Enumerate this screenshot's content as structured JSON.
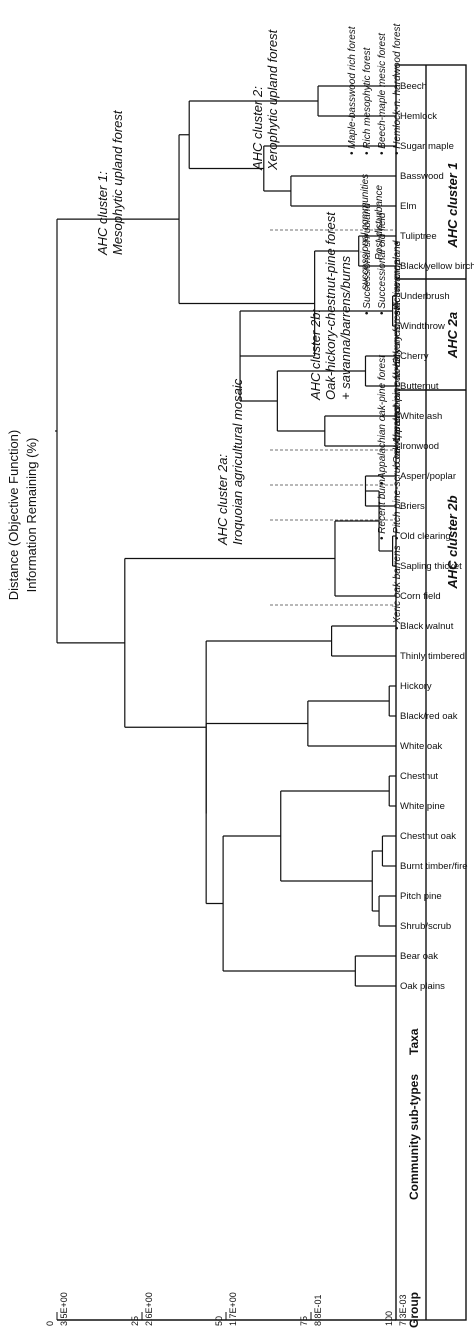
{
  "axes": {
    "distance_label": "Distance (Objective Function)",
    "info_label": "Information Remaining (%)",
    "distance_ticks": [
      "7.3E-03",
      "8.8E-01",
      "1.7E+00",
      "2.6E+00",
      "3.5E+00"
    ],
    "info_ticks": [
      "100",
      "75",
      "50",
      "25",
      "0"
    ]
  },
  "headers": {
    "group": "Group",
    "community": "Community sub-types",
    "taxa": "Taxa"
  },
  "groups": [
    {
      "name": "AHC cluster 1",
      "subtypes": [
        "Hemlock-n. hardwood forest",
        "Beech-maple mesic forest",
        "Rich mesophytic forest",
        "Maple-basswood rich forest"
      ],
      "subtypes_b": [
        "Post-disturbance",
        "successional communities"
      ],
      "taxa": [
        "Beech",
        "Hemlock",
        "Sugar maple",
        "Basswood",
        "Elm",
        "Tuliptree",
        "Black/yellow birch",
        "Underbrush",
        "Windthrow",
        "Cherry",
        "Butternut",
        "White ash",
        "Ironwood"
      ]
    },
    {
      "name": "AHC 2a",
      "subtypes": [
        "Active cropland",
        "Successional old field",
        "Successional shrubland"
      ],
      "taxa": [
        "Aspen/poplar",
        "Briers",
        "Old clearing",
        "Sapling thicket",
        "Corn field"
      ]
    },
    {
      "name": "AHC cluster 2b",
      "subtypes": [
        "Dry-mesic oak savanna",
        "Appalachian oak-hickory forest",
        "Oak-chestnut-pine forest",
        "Appalachian oak-pine forest",
        "Pitch pine-scrub oak barrens",
        "Recent burn",
        "Xeric oak barrens"
      ],
      "taxa": [
        "Black walnut",
        "Thinly timbered",
        "Hickory",
        "Black/red oak",
        "White oak",
        "Chestnut",
        "White pine",
        "Chestnut oak",
        "Burnt timber/fire",
        "Pitch pine",
        "Shrub/scrub",
        "Bear oak",
        "Oak plains"
      ]
    }
  ],
  "cluster_labels": {
    "c1_title": "AHC cluster 1:",
    "c1_sub": "Mesophytic upland forest",
    "c2_title": "AHC cluster 2:",
    "c2_sub": "Xerophytic upland forest",
    "c2a_title": "AHC cluster 2a:",
    "c2a_sub": "Iroquoian agricultural mosaic",
    "c2b_title": "AHC cluster 2b:",
    "c2b_sub": "Oak-hickory-chestnut-pine forest",
    "c2b_sub2": "+ savanna/barrens/burns"
  },
  "chart_data": {
    "type": "dendrogram",
    "distance_range": [
      0.0073,
      3.5
    ],
    "information_remaining_range": [
      100,
      0
    ],
    "leaves": [
      "Beech",
      "Hemlock",
      "Sugar maple",
      "Basswood",
      "Elm",
      "Tuliptree",
      "Black/yellow birch",
      "Underbrush",
      "Windthrow",
      "Cherry",
      "Butternut",
      "White ash",
      "Ironwood",
      "Aspen/poplar",
      "Briers",
      "Old clearing",
      "Sapling thicket",
      "Corn field",
      "Black walnut",
      "Thinly timbered",
      "Hickory",
      "Black/red oak",
      "White oak",
      "Chestnut",
      "White pine",
      "Chestnut oak",
      "Burnt timber/fire",
      "Pitch pine",
      "Shrub/scrub",
      "Bear oak",
      "Oak plains"
    ],
    "merges": [
      {
        "a": "Beech",
        "b": "Hemlock",
        "info": 77
      },
      {
        "a": "Basswood",
        "b": "Elm",
        "info": 69
      },
      {
        "a": "Sugar maple",
        "b": "Basswood+Elm",
        "info": 61
      },
      {
        "a": "Beech+Hemlock",
        "b": "Sugar maple+Basswood+Elm",
        "info": 39
      },
      {
        "a": "Tuliptree",
        "b": "Black/yellow birch",
        "info": 89
      },
      {
        "a": "Underbrush",
        "b": "Windthrow",
        "info": 99
      },
      {
        "a": "Cherry",
        "b": "Butternut",
        "info": 91
      },
      {
        "a": "White ash",
        "b": "Ironwood",
        "info": 79
      },
      {
        "a": "Cherry+Butternut",
        "b": "White ash+Ironwood",
        "info": 65
      },
      {
        "a": "Underbrush+Windthrow",
        "b": "Cherry..Ironwood",
        "info": 54
      },
      {
        "a": "Tuliptree+Black/yellow birch",
        "b": "Underbrush..Ironwood",
        "info": 76
      },
      {
        "a": "Beech..Elm",
        "b": "Tuliptree..Ironwood",
        "info": 36
      },
      {
        "a": "Aspen/poplar",
        "b": "Briers",
        "info": 91
      },
      {
        "a": "Old clearing",
        "b": "Sapling thicket",
        "info": 99
      },
      {
        "a": "Aspen/poplar+Briers",
        "b": "Old clearing+Sapling thicket",
        "info": 95
      },
      {
        "a": "Aspen..Sapling thicket",
        "b": "Corn field",
        "info": 82
      },
      {
        "a": "Black walnut",
        "b": "Thinly timbered",
        "info": 81
      },
      {
        "a": "Hickory",
        "b": "Black/red oak",
        "info": 98
      },
      {
        "a": "Hickory+Black/red oak",
        "b": "White oak",
        "info": 74
      },
      {
        "a": "Chestnut",
        "b": "White pine",
        "info": 98
      },
      {
        "a": "Chestnut oak",
        "b": "Burnt timber/fire",
        "info": 96
      },
      {
        "a": "Pitch pine",
        "b": "Shrub/scrub",
        "info": 95
      },
      {
        "a": "Chestnut oak+Burnt timber/fire",
        "b": "Pitch pine+Shrub/scrub",
        "info": 93
      },
      {
        "a": "Chestnut+White pine",
        "b": "Chestnut oak..Shrub/scrub",
        "info": 66
      },
      {
        "a": "Bear oak",
        "b": "Oak plains",
        "info": 88
      },
      {
        "a": "Chestnut..Shrub/scrub",
        "b": "Bear oak+Oak plains",
        "info": 49
      },
      {
        "a": "Hickory..White oak",
        "b": "Chestnut..Oak plains",
        "info": 44
      },
      {
        "a": "Black walnut+Thinly timbered",
        "b": "Hickory..Oak plains",
        "info": 44
      },
      {
        "a": "AHC cluster 2a",
        "b": "AHC cluster 2b",
        "info": 20
      },
      {
        "a": "AHC cluster 1",
        "b": "AHC cluster 2",
        "info": 0
      }
    ]
  }
}
